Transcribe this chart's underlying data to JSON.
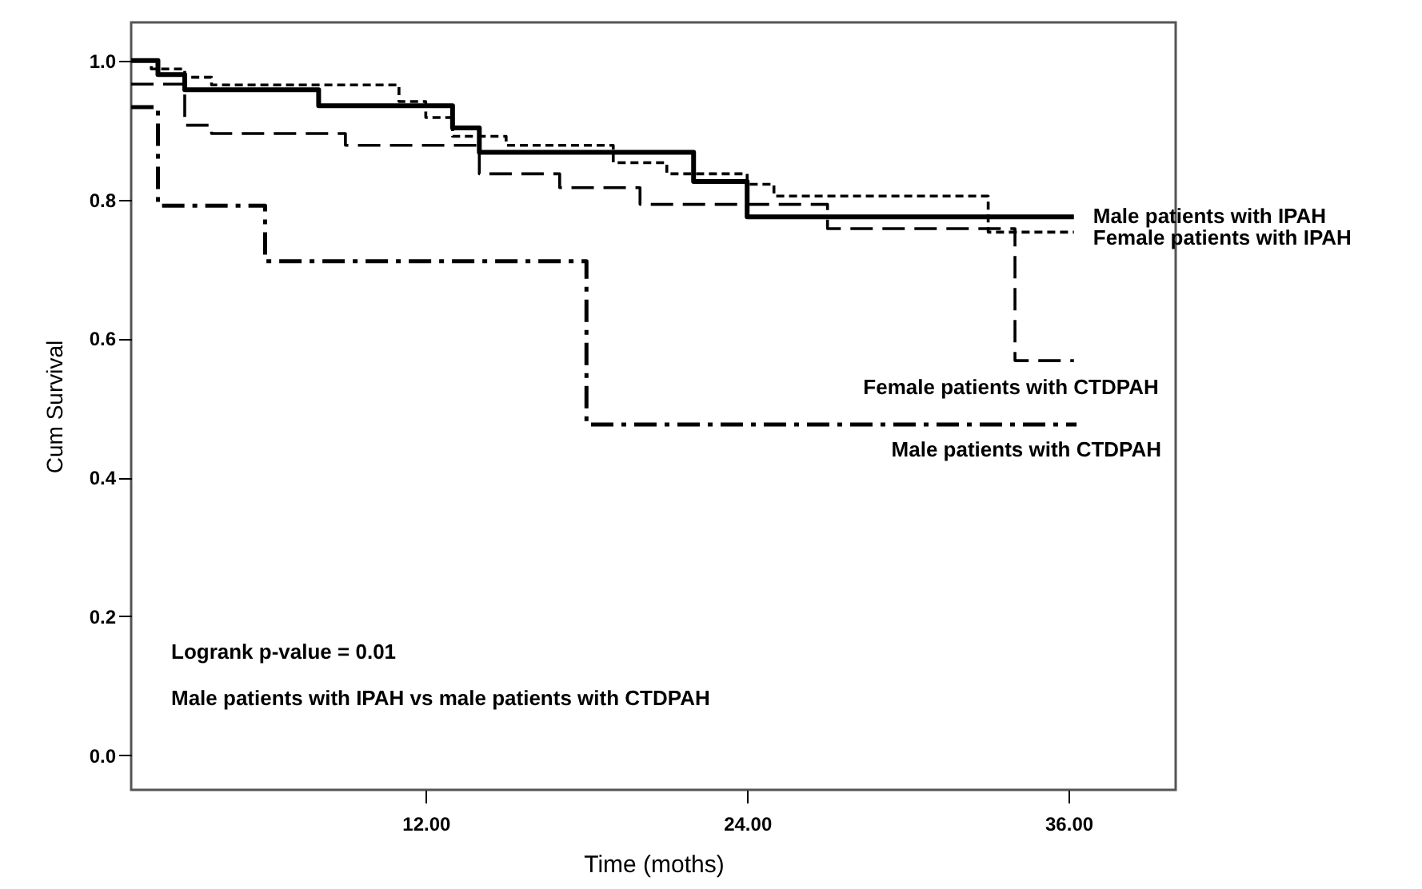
{
  "chart_data": {
    "type": "step",
    "xlabel": "Time (moths)",
    "ylabel": "Cum Survival",
    "xlim": [
      1,
      40
    ],
    "ylim": [
      -0.05,
      1.055
    ],
    "xticks": [
      {
        "value": 12,
        "label": "12.00"
      },
      {
        "value": 24,
        "label": "24.00"
      },
      {
        "value": 36,
        "label": "36.00"
      }
    ],
    "yticks": [
      {
        "value": 0,
        "label": "0.0"
      },
      {
        "value": 0.2,
        "label": "0.2"
      },
      {
        "value": 0.4,
        "label": "0.4"
      },
      {
        "value": 0.6,
        "label": "0.6"
      },
      {
        "value": 0.8,
        "label": "0.8"
      },
      {
        "value": 1.0,
        "label": "1.0"
      }
    ],
    "grid": false,
    "legend": false,
    "marker": "none",
    "series": [
      {
        "name": "Male patients with IPAH",
        "color": "#000000",
        "line_style": "solid",
        "x": [
          1,
          2,
          3,
          8,
          13,
          14,
          22,
          24,
          36.2
        ],
        "values": [
          1.0,
          0.98,
          0.958,
          0.935,
          0.903,
          0.868,
          0.826,
          0.775,
          0.775
        ]
      },
      {
        "name": "Female patients with IPAH",
        "color": "#000000",
        "line_style": "dotted",
        "x": [
          1,
          1.75,
          3,
          4,
          11,
          12,
          13,
          15,
          19,
          21,
          24,
          25,
          33,
          36.2
        ],
        "values": [
          1.0,
          0.988,
          0.976,
          0.965,
          0.941,
          0.918,
          0.891,
          0.878,
          0.853,
          0.837,
          0.822,
          0.805,
          0.753,
          0.753
        ]
      },
      {
        "name": "Female patients with CTDPAH",
        "color": "#000000",
        "line_style": "dashed",
        "x": [
          1,
          3,
          4,
          9,
          14,
          17,
          20,
          27,
          34,
          36.2
        ],
        "values": [
          0.966,
          0.907,
          0.895,
          0.878,
          0.837,
          0.817,
          0.793,
          0.758,
          0.568,
          0.568
        ]
      },
      {
        "name": "Male patients with CTDPAH",
        "color": "#000000",
        "line_style": "dashdot",
        "x": [
          1,
          2,
          6,
          18,
          36.3
        ],
        "values": [
          0.933,
          0.791,
          0.711,
          0.476,
          0.476
        ]
      }
    ],
    "annotations": [
      "Logrank p-value = 0.01",
      "Male patients with IPAH vs male patients with CTDPAH"
    ]
  }
}
